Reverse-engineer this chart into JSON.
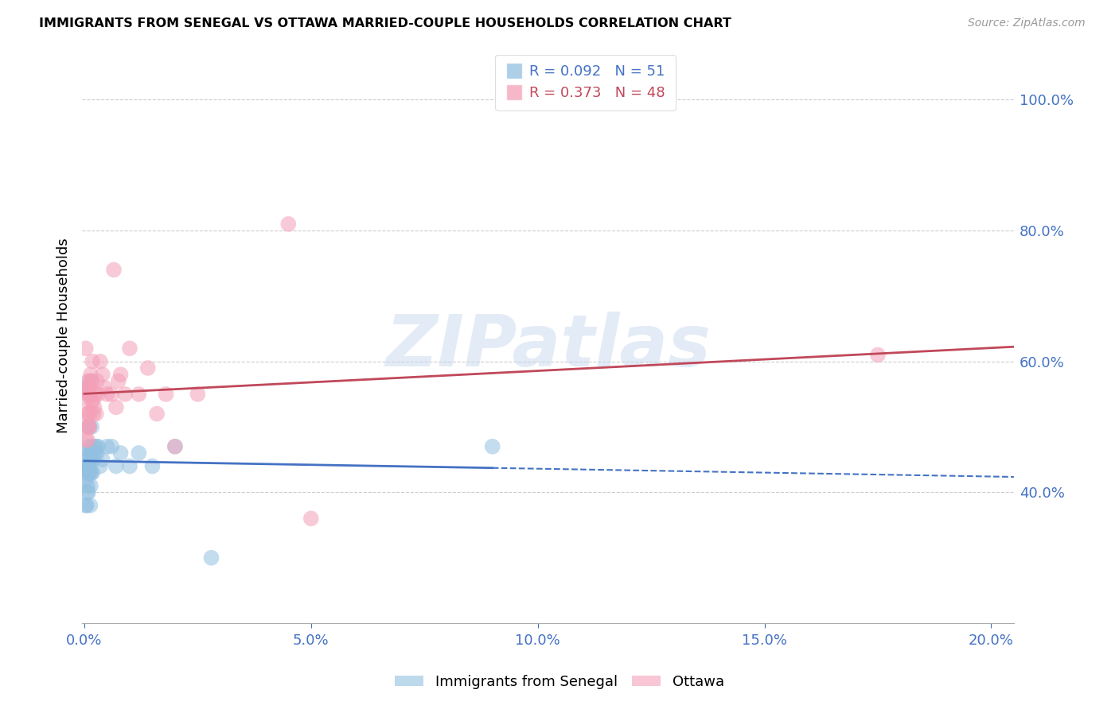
{
  "title": "IMMIGRANTS FROM SENEGAL VS OTTAWA MARRIED-COUPLE HOUSEHOLDS CORRELATION CHART",
  "source": "Source: ZipAtlas.com",
  "ylabel": "Married-couple Households",
  "legend_label1": "Immigrants from Senegal",
  "legend_label2": "Ottawa",
  "r1": 0.092,
  "n1": 51,
  "r2": 0.373,
  "n2": 48,
  "xlim": [
    -0.0005,
    0.205
  ],
  "ylim": [
    0.2,
    1.08
  ],
  "yticks": [
    0.4,
    0.6,
    0.8,
    1.0
  ],
  "xticks": [
    0.0,
    0.05,
    0.1,
    0.15,
    0.2
  ],
  "color_blue": "#92C0E0",
  "color_pink": "#F4A0B8",
  "line_blue": "#4472C4",
  "line_pink": "#C0485A",
  "watermark_color": "#C8D8EE",
  "blue_points_x": [
    0.0002,
    0.0003,
    0.0004,
    0.0004,
    0.0005,
    0.0005,
    0.0006,
    0.0006,
    0.0006,
    0.0007,
    0.0007,
    0.0007,
    0.0008,
    0.0008,
    0.0009,
    0.0009,
    0.001,
    0.001,
    0.0011,
    0.0011,
    0.0012,
    0.0012,
    0.0013,
    0.0013,
    0.0014,
    0.0014,
    0.0015,
    0.0015,
    0.0016,
    0.0016,
    0.0017,
    0.0018,
    0.0019,
    0.002,
    0.0022,
    0.0024,
    0.0026,
    0.0028,
    0.003,
    0.0035,
    0.004,
    0.005,
    0.006,
    0.007,
    0.008,
    0.01,
    0.012,
    0.015,
    0.02,
    0.028,
    0.09
  ],
  "blue_points_y": [
    0.43,
    0.38,
    0.42,
    0.45,
    0.38,
    0.44,
    0.4,
    0.44,
    0.46,
    0.41,
    0.44,
    0.56,
    0.43,
    0.5,
    0.4,
    0.44,
    0.43,
    0.47,
    0.44,
    0.5,
    0.46,
    0.57,
    0.38,
    0.43,
    0.41,
    0.45,
    0.43,
    0.46,
    0.47,
    0.5,
    0.46,
    0.43,
    0.46,
    0.45,
    0.47,
    0.46,
    0.47,
    0.46,
    0.47,
    0.44,
    0.45,
    0.47,
    0.47,
    0.44,
    0.46,
    0.44,
    0.46,
    0.44,
    0.47,
    0.3,
    0.47
  ],
  "pink_points_x": [
    0.0003,
    0.0004,
    0.0005,
    0.0005,
    0.0006,
    0.0007,
    0.0007,
    0.0008,
    0.0008,
    0.0009,
    0.001,
    0.001,
    0.0011,
    0.0011,
    0.0012,
    0.0013,
    0.0014,
    0.0015,
    0.0016,
    0.0017,
    0.0018,
    0.0019,
    0.002,
    0.0022,
    0.0024,
    0.0026,
    0.0028,
    0.003,
    0.0035,
    0.004,
    0.0045,
    0.005,
    0.006,
    0.0065,
    0.007,
    0.0075,
    0.008,
    0.009,
    0.01,
    0.012,
    0.014,
    0.016,
    0.018,
    0.02,
    0.025,
    0.045,
    0.05,
    0.175
  ],
  "pink_points_y": [
    0.62,
    0.48,
    0.5,
    0.54,
    0.52,
    0.48,
    0.55,
    0.52,
    0.57,
    0.56,
    0.5,
    0.55,
    0.5,
    0.56,
    0.52,
    0.55,
    0.58,
    0.57,
    0.54,
    0.57,
    0.6,
    0.54,
    0.52,
    0.53,
    0.55,
    0.52,
    0.57,
    0.55,
    0.6,
    0.58,
    0.56,
    0.55,
    0.55,
    0.74,
    0.53,
    0.57,
    0.58,
    0.55,
    0.62,
    0.55,
    0.59,
    0.52,
    0.55,
    0.47,
    0.55,
    0.81,
    0.36,
    0.61
  ]
}
